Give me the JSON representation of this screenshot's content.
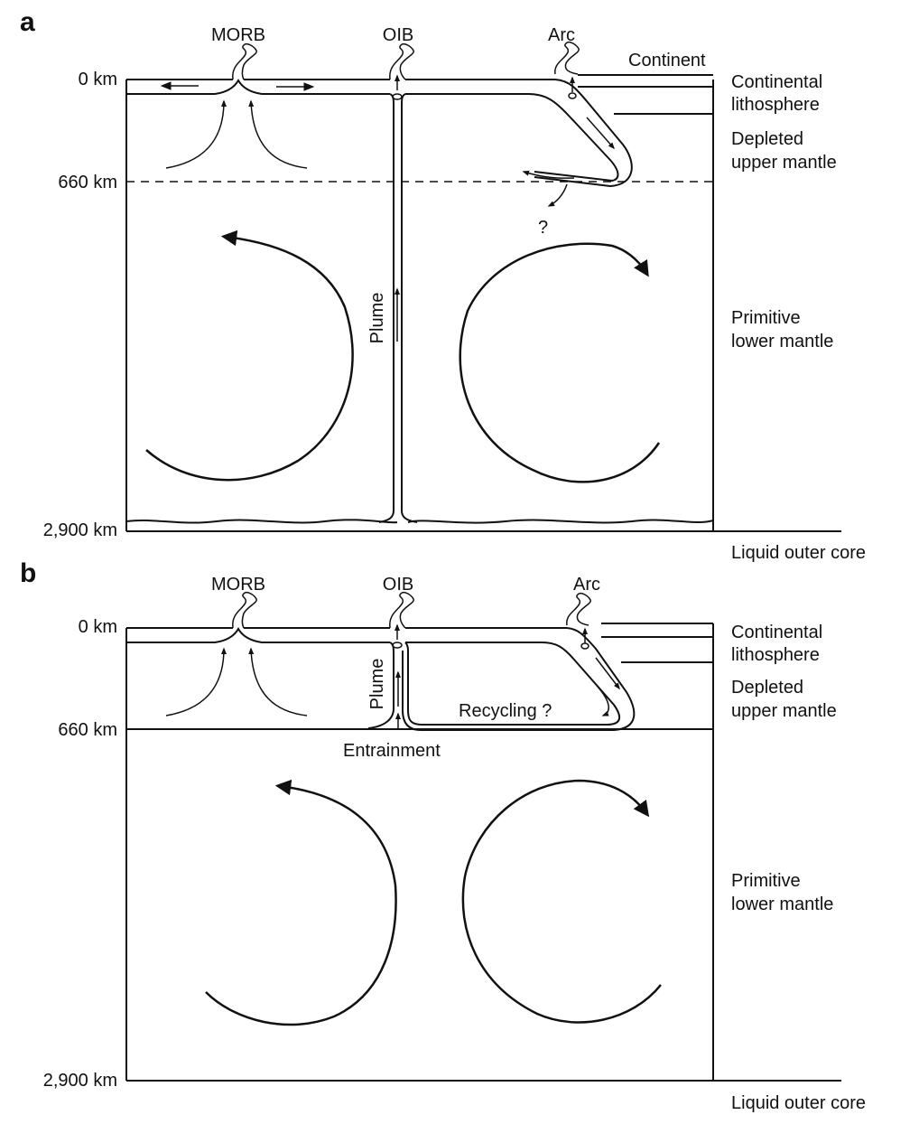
{
  "panel_a": {
    "letter": "a",
    "volcano_labels": {
      "morb": "MORB",
      "oib": "OIB",
      "arc": "Arc"
    },
    "continent": "Continent",
    "depths": {
      "surface": "0 km",
      "transition": "660 km",
      "cmb": "2,900 km"
    },
    "right_labels": {
      "lith_1": "Continental",
      "lith_2": "lithosphere",
      "upper_1": "Depleted",
      "upper_2": "upper mantle",
      "lower_1": "Primitive",
      "lower_2": "lower mantle",
      "core": "Liquid outer core"
    },
    "plume": "Plume",
    "question": "?"
  },
  "panel_b": {
    "letter": "b",
    "volcano_labels": {
      "morb": "MORB",
      "oib": "OIB",
      "arc": "Arc"
    },
    "depths": {
      "surface": "0 km",
      "transition": "660 km",
      "cmb": "2,900 km"
    },
    "right_labels": {
      "lith_1": "Continental",
      "lith_2": "lithosphere",
      "upper_1": "Depleted",
      "upper_2": "upper mantle",
      "lower_1": "Primitive",
      "lower_2": "lower mantle",
      "core": "Liquid outer core"
    },
    "plume": "Plume",
    "recycling": "Recycling ?",
    "entrainment": "Entrainment"
  }
}
